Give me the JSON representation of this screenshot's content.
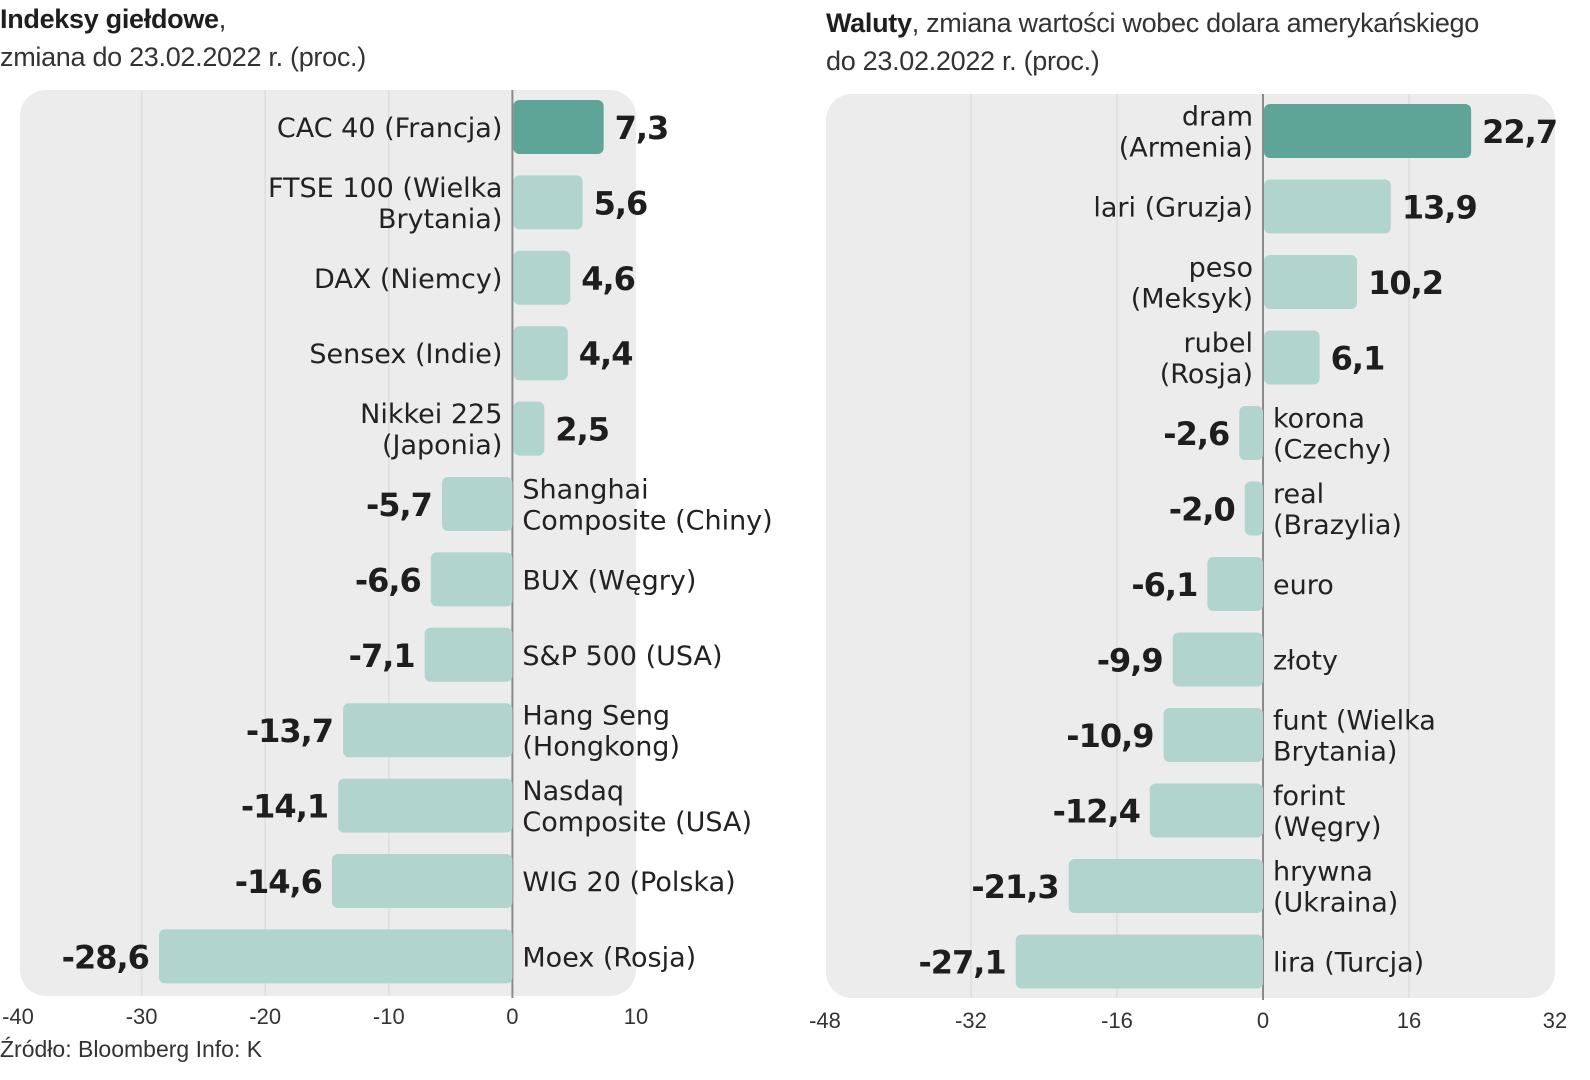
{
  "chart_data": [
    {
      "type": "bar",
      "orientation": "horizontal",
      "title": "Indeksy giełdowe",
      "subtitle": "zmiana do 23.02.2022 r. (proc.)",
      "xlabel": "",
      "ylabel": "",
      "xlim": [
        -40,
        10
      ],
      "xticks": [
        -40,
        -30,
        -20,
        -10,
        0,
        10
      ],
      "grid": true,
      "highlight_index": 0,
      "categories": [
        [
          "CAC 40 (Francja)"
        ],
        [
          "FTSE 100 (Wielka",
          "Brytania)"
        ],
        [
          "DAX (Niemcy)"
        ],
        [
          "Sensex (Indie)"
        ],
        [
          "Nikkei 225",
          "(Japonia)"
        ],
        [
          "Shanghai",
          "Composite (Chiny)"
        ],
        [
          "BUX (Węgry)"
        ],
        [
          "S&P 500 (USA)"
        ],
        [
          "Hang Seng",
          "(Hongkong)"
        ],
        [
          "Nasdaq",
          "Composite (USA)"
        ],
        [
          "WIG 20 (Polska)"
        ],
        [
          "Moex (Rosja)"
        ]
      ],
      "values": [
        7.3,
        5.6,
        4.6,
        4.4,
        2.5,
        -5.7,
        -6.6,
        -7.1,
        -13.7,
        -14.1,
        -14.6,
        -28.6
      ],
      "value_labels": [
        "7,3",
        "5,6",
        "4,6",
        "4,4",
        "2,5",
        "-5,7",
        "-6,6",
        "-7,1",
        "-13,7",
        "-14,1",
        "-14,6",
        "-28,6"
      ]
    },
    {
      "type": "bar",
      "orientation": "horizontal",
      "title": "Waluty",
      "subtitle": ", zmiana wartości wobec dolara amerykańskiego do 23.02.2022 r. (proc.)",
      "xlabel": "",
      "ylabel": "",
      "xlim": [
        -48,
        32
      ],
      "xticks": [
        -48,
        -32,
        -16,
        0,
        16,
        32
      ],
      "grid": true,
      "highlight_index": 0,
      "categories": [
        [
          "dram",
          "(Armenia)"
        ],
        [
          "lari (Gruzja)"
        ],
        [
          "peso",
          "(Meksyk)"
        ],
        [
          "rubel",
          "(Rosja)"
        ],
        [
          "korona",
          "(Czechy)"
        ],
        [
          "real",
          "(Brazylia)"
        ],
        [
          "euro"
        ],
        [
          "złoty"
        ],
        [
          "funt (Wielka",
          "Brytania)"
        ],
        [
          "forint",
          "(Węgry)"
        ],
        [
          "hrywna",
          "(Ukraina)"
        ],
        [
          "lira (Turcja)"
        ]
      ],
      "values": [
        22.7,
        13.9,
        10.2,
        6.1,
        -2.6,
        -2.0,
        -6.1,
        -9.9,
        -10.9,
        -12.4,
        -21.3,
        -27.1
      ],
      "value_labels": [
        "22,7",
        "13,9",
        "10,2",
        "6,1",
        "-2,6",
        "-2,0",
        "-6,1",
        "-9,9",
        "-10,9",
        "-12,4",
        "-21,3",
        "-27,1"
      ]
    }
  ],
  "titles": {
    "left_bold": "Indeksy giełdowe",
    "left_comma": ",",
    "left_sub": "zmiana do 23.02.2022 r. (proc.)",
    "right_bold": "Waluty",
    "right_rest": ", zmiana wartości wobec dolara amerykańskiego",
    "right_sub": "do 23.02.2022 r. (proc.)"
  },
  "colors": {
    "highlight_bar": "#5ea597",
    "bar": "#b2d4ce",
    "panel": "#ececec",
    "grid": "#dddddd",
    "axis": "#8a8a8a"
  },
  "source": "Źródło: Bloomberg  Info: K"
}
